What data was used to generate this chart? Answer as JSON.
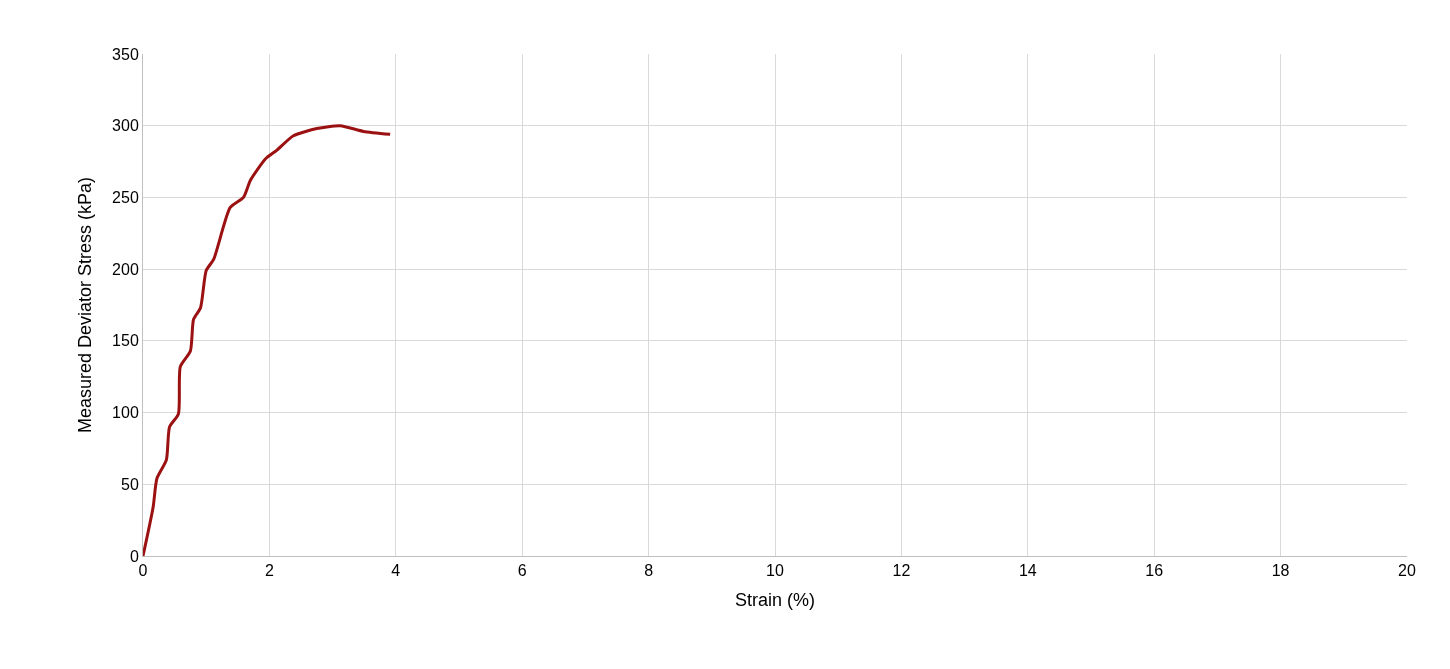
{
  "chart_data": {
    "type": "line",
    "xlabel": "Strain (%)",
    "ylabel": "Measured Deviator Stress (kPa)",
    "x": [
      0,
      0.16,
      0.22,
      0.37,
      0.42,
      0.56,
      0.59,
      0.75,
      0.8,
      0.91,
      1.0,
      1.12,
      1.38,
      1.59,
      1.7,
      1.94,
      2.12,
      2.38,
      2.75,
      3.12,
      3.49,
      3.91
    ],
    "series": [
      {
        "color": "#9b1111",
        "values": [
          0,
          34,
          54,
          67,
          90,
          99,
          132,
          143,
          165,
          173,
          199,
          207,
          243,
          250,
          262,
          277,
          283,
          293,
          298,
          300,
          296,
          294
        ]
      }
    ],
    "xlim": [
      0,
      20
    ],
    "xticks": [
      0,
      2,
      4,
      6,
      8,
      10,
      12,
      14,
      16,
      18,
      20
    ],
    "ylim": [
      0,
      350
    ],
    "yticks": [
      0,
      50,
      100,
      150,
      200,
      250,
      300,
      350
    ],
    "grid": true,
    "marker": "none",
    "line_style": "solid"
  }
}
